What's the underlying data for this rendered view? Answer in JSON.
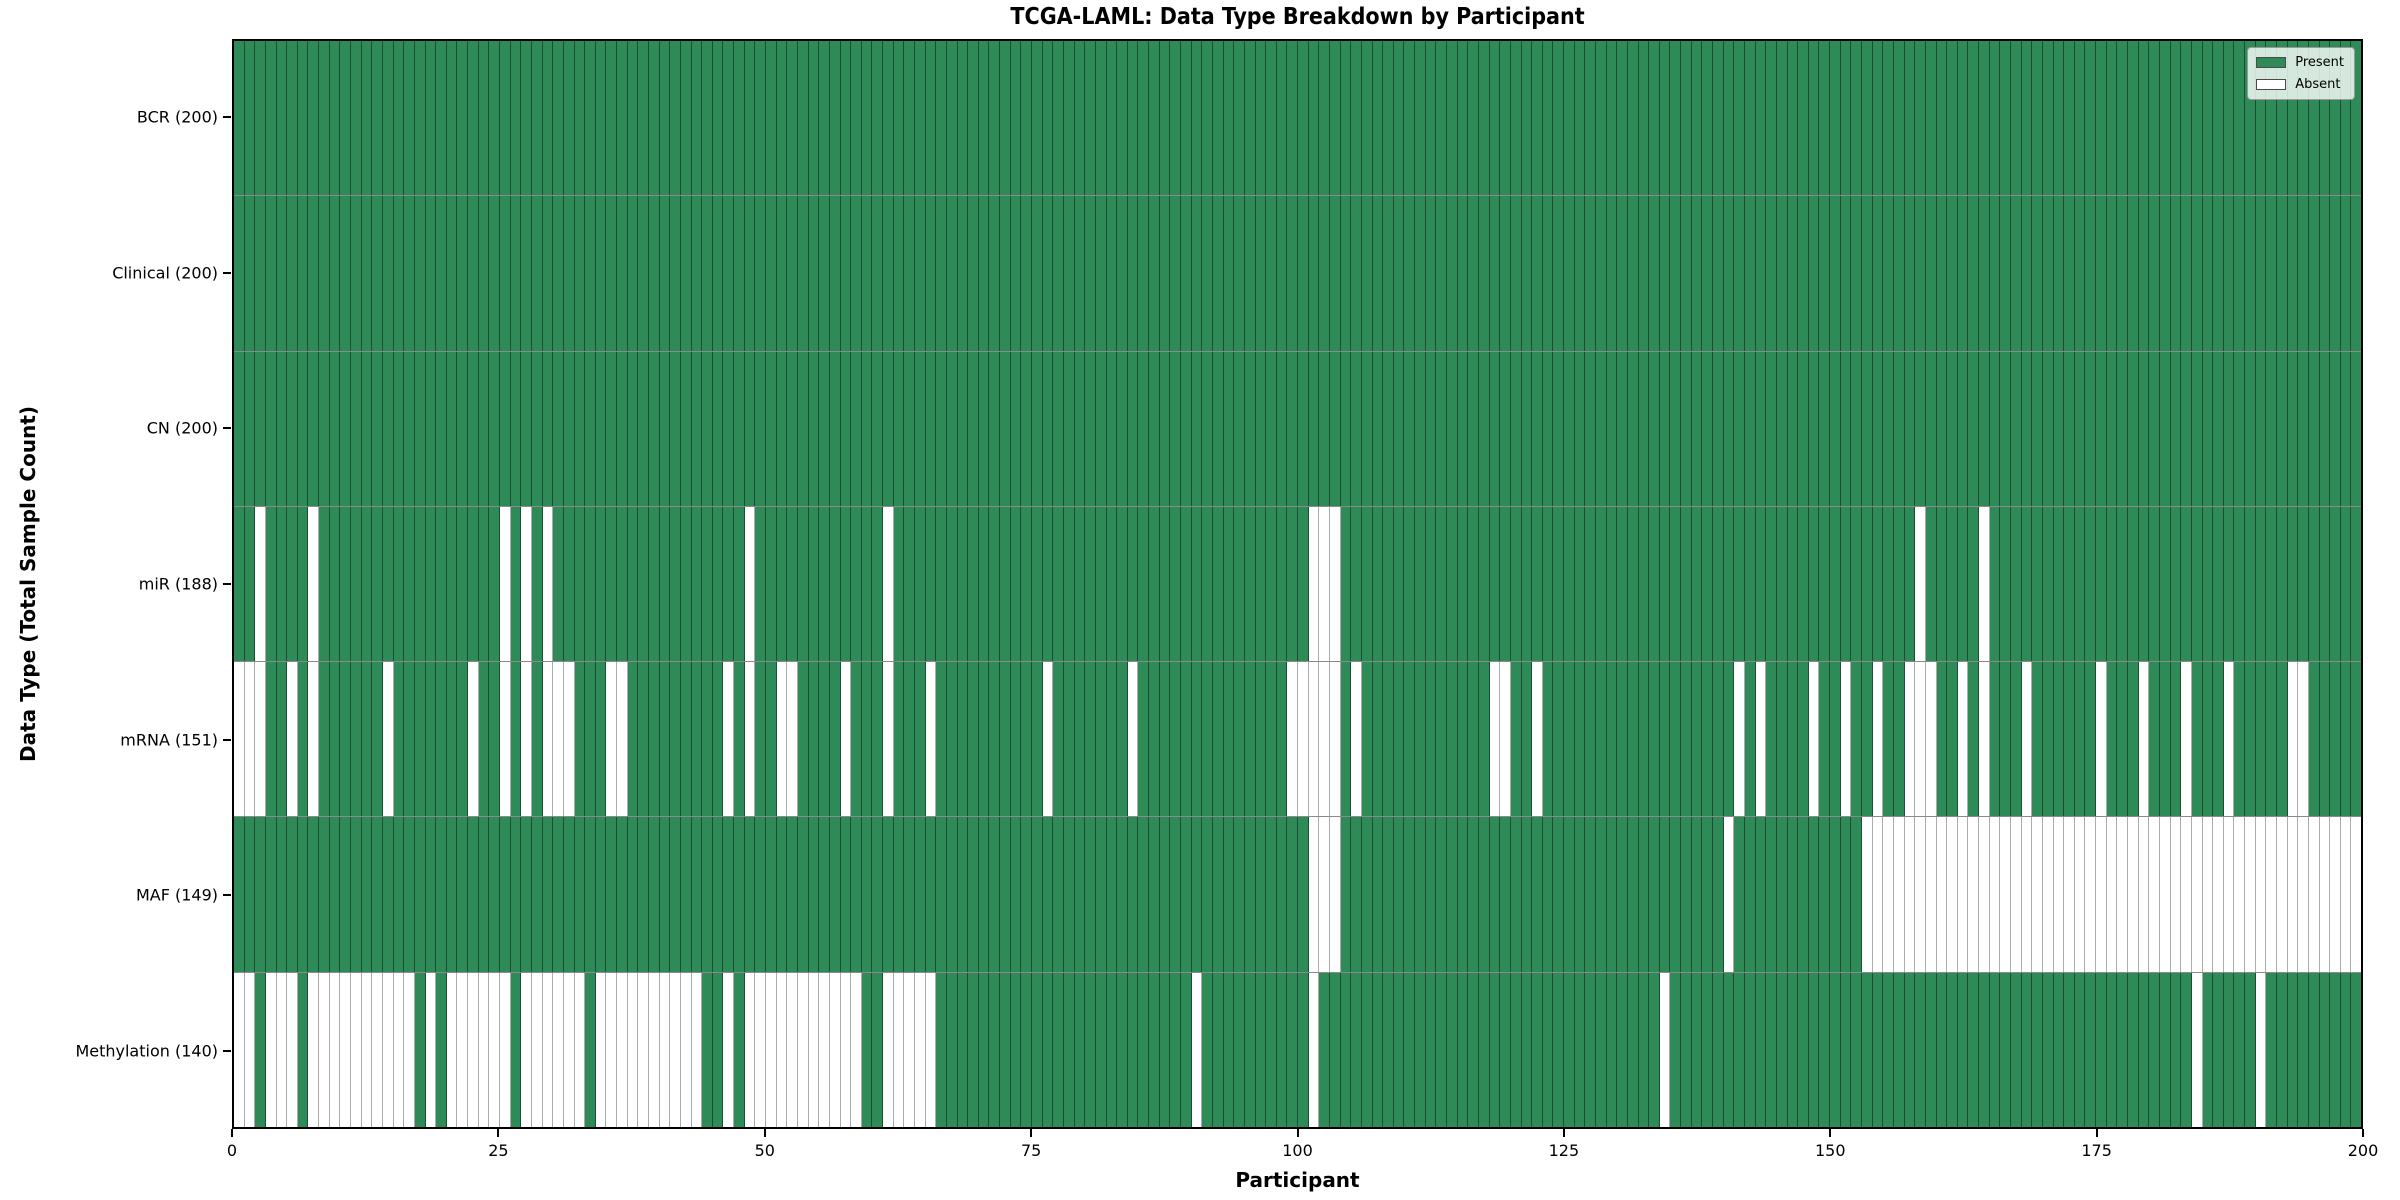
{
  "title": "TCGA-LAML: Data Type Breakdown by Participant",
  "chart_data": {
    "type": "heatmap",
    "title": "TCGA-LAML: Data Type Breakdown by Participant",
    "xlabel": "Participant",
    "ylabel": "Data Type (Total Sample Count)",
    "x_ticks": [
      0,
      25,
      50,
      75,
      100,
      125,
      150,
      175,
      200
    ],
    "n_participants": 200,
    "xlim": [
      0,
      200
    ],
    "grid": "cell-outlines",
    "legend_position": "upper right",
    "legend": [
      {
        "label": "Present",
        "color": "#2e8b57"
      },
      {
        "label": "Absent",
        "color": "#ffffff"
      }
    ],
    "colors": {
      "present": "#2e8b57",
      "absent": "#ffffff",
      "cell_edge_on_green": "rgba(10,30,20,0.55)",
      "cell_edge_on_white": "#ababab",
      "row_separator": "#8a8a8a",
      "plot_border": "#000000"
    },
    "rows": [
      {
        "name": "BCR",
        "label": "BCR (200)",
        "total": 200,
        "absent": []
      },
      {
        "name": "Clinical",
        "label": "Clinical (200)",
        "total": 200,
        "absent": []
      },
      {
        "name": "CN",
        "label": "CN (200)",
        "total": 200,
        "absent": []
      },
      {
        "name": "miR",
        "label": "miR (188)",
        "total": 188,
        "absent": [
          2,
          7,
          25,
          27,
          29,
          48,
          61,
          101,
          102,
          103,
          158,
          164
        ]
      },
      {
        "name": "mRNA",
        "label": "mRNA (151)",
        "total": 151,
        "absent": [
          0,
          1,
          2,
          5,
          7,
          14,
          22,
          25,
          27,
          29,
          30,
          31,
          35,
          36,
          46,
          48,
          51,
          52,
          57,
          61,
          65,
          76,
          84,
          99,
          100,
          101,
          102,
          103,
          105,
          118,
          119,
          122,
          141,
          143,
          148,
          151,
          154,
          157,
          158,
          159,
          162,
          164,
          168,
          175,
          179,
          183,
          187,
          193,
          194
        ]
      },
      {
        "name": "MAF",
        "label": "MAF (149)",
        "total": 149,
        "absent": [
          101,
          102,
          103,
          140,
          153,
          154,
          155,
          156,
          157,
          158,
          159,
          160,
          161,
          162,
          163,
          164,
          165,
          166,
          167,
          168,
          169,
          170,
          171,
          172,
          173,
          174,
          175,
          176,
          177,
          178,
          179,
          180,
          181,
          182,
          183,
          184,
          185,
          186,
          187,
          188,
          189,
          190,
          191,
          192,
          193,
          194,
          195,
          196,
          197,
          198,
          199
        ]
      },
      {
        "name": "Methylation",
        "label": "Methylation (140)",
        "total": 140,
        "absent": [
          0,
          1,
          3,
          4,
          5,
          7,
          8,
          9,
          10,
          11,
          12,
          13,
          14,
          15,
          16,
          18,
          20,
          21,
          22,
          23,
          24,
          25,
          27,
          28,
          29,
          30,
          31,
          32,
          34,
          35,
          36,
          37,
          38,
          39,
          40,
          41,
          42,
          43,
          46,
          48,
          49,
          50,
          51,
          52,
          53,
          54,
          55,
          56,
          57,
          58,
          61,
          62,
          63,
          64,
          65,
          90,
          101,
          134,
          184,
          190
        ]
      }
    ]
  }
}
